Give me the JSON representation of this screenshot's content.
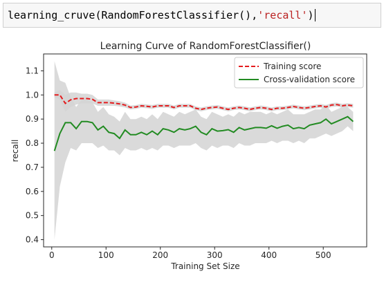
{
  "code_cell": {
    "func": "learning_cruve",
    "paren_open": "(",
    "arg1": "RandomForestClassifier()",
    "comma": ",",
    "arg2": "'recall'",
    "paren_close": ")"
  },
  "colors": {
    "training": "#e41a1c",
    "cv": "#228b22",
    "band": "#d3d3d3"
  },
  "chart_data": {
    "type": "line",
    "title": "Learning Curve of RandomForestClassifier()",
    "xlabel": "Training Set Size",
    "ylabel": "recall",
    "xlim": [
      -15,
      580
    ],
    "ylim": [
      0.37,
      1.17
    ],
    "xticks": [
      0,
      100,
      200,
      300,
      400,
      500
    ],
    "yticks": [
      0.4,
      0.5,
      0.6,
      0.7,
      0.8,
      0.9,
      1.0,
      1.1
    ],
    "legend_position": "top-right",
    "x": [
      5,
      15,
      25,
      35,
      45,
      55,
      65,
      75,
      85,
      95,
      105,
      115,
      125,
      135,
      145,
      155,
      165,
      175,
      185,
      195,
      205,
      215,
      225,
      235,
      245,
      255,
      265,
      275,
      285,
      295,
      305,
      315,
      325,
      335,
      345,
      355,
      365,
      375,
      385,
      395,
      405,
      415,
      425,
      435,
      445,
      455,
      465,
      475,
      485,
      495,
      505,
      515,
      525,
      535,
      545,
      555
    ],
    "series": [
      {
        "name": "Training score",
        "style": "dashed",
        "values": [
          1.0,
          1.0,
          0.965,
          0.98,
          0.985,
          0.985,
          0.985,
          0.982,
          0.968,
          0.968,
          0.968,
          0.966,
          0.963,
          0.958,
          0.948,
          0.95,
          0.955,
          0.953,
          0.95,
          0.955,
          0.955,
          0.955,
          0.948,
          0.955,
          0.955,
          0.955,
          0.945,
          0.94,
          0.945,
          0.948,
          0.95,
          0.945,
          0.94,
          0.945,
          0.948,
          0.945,
          0.94,
          0.945,
          0.948,
          0.945,
          0.94,
          0.945,
          0.945,
          0.948,
          0.952,
          0.948,
          0.945,
          0.948,
          0.952,
          0.955,
          0.95,
          0.958,
          0.96,
          0.955,
          0.958,
          0.955
        ],
        "band_lower": [
          0.99,
          0.98,
          0.93,
          0.95,
          0.96,
          0.965,
          0.965,
          0.965,
          0.955,
          0.955,
          0.955,
          0.955,
          0.952,
          0.948,
          0.94,
          0.942,
          0.947,
          0.945,
          0.942,
          0.947,
          0.947,
          0.947,
          0.94,
          0.947,
          0.947,
          0.947,
          0.937,
          0.932,
          0.937,
          0.94,
          0.942,
          0.937,
          0.932,
          0.937,
          0.94,
          0.937,
          0.932,
          0.937,
          0.94,
          0.937,
          0.932,
          0.937,
          0.937,
          0.94,
          0.944,
          0.94,
          0.937,
          0.94,
          0.944,
          0.947,
          0.942,
          0.95,
          0.952,
          0.947,
          0.95,
          0.947
        ],
        "band_upper": [
          1.01,
          1.02,
          1.0,
          1.01,
          1.01,
          1.005,
          1.005,
          1.0,
          0.981,
          0.981,
          0.981,
          0.977,
          0.974,
          0.968,
          0.956,
          0.958,
          0.963,
          0.961,
          0.958,
          0.963,
          0.963,
          0.963,
          0.956,
          0.963,
          0.963,
          0.963,
          0.953,
          0.948,
          0.953,
          0.956,
          0.958,
          0.953,
          0.948,
          0.953,
          0.956,
          0.953,
          0.948,
          0.953,
          0.956,
          0.953,
          0.948,
          0.953,
          0.953,
          0.956,
          0.96,
          0.956,
          0.953,
          0.956,
          0.96,
          0.963,
          0.958,
          0.966,
          0.968,
          0.963,
          0.966,
          0.963
        ]
      },
      {
        "name": "Cross-validation score",
        "style": "solid",
        "values": [
          0.768,
          0.84,
          0.885,
          0.885,
          0.86,
          0.89,
          0.89,
          0.885,
          0.855,
          0.87,
          0.845,
          0.84,
          0.82,
          0.855,
          0.835,
          0.835,
          0.845,
          0.835,
          0.85,
          0.835,
          0.86,
          0.855,
          0.845,
          0.86,
          0.855,
          0.86,
          0.87,
          0.845,
          0.835,
          0.86,
          0.85,
          0.852,
          0.856,
          0.845,
          0.865,
          0.855,
          0.86,
          0.865,
          0.865,
          0.862,
          0.872,
          0.862,
          0.87,
          0.875,
          0.86,
          0.865,
          0.86,
          0.875,
          0.88,
          0.885,
          0.9,
          0.88,
          0.89,
          0.9,
          0.91,
          0.89
        ],
        "band_lower": [
          0.4,
          0.62,
          0.72,
          0.78,
          0.77,
          0.8,
          0.8,
          0.8,
          0.78,
          0.79,
          0.77,
          0.77,
          0.75,
          0.78,
          0.77,
          0.77,
          0.78,
          0.77,
          0.78,
          0.77,
          0.79,
          0.79,
          0.78,
          0.79,
          0.79,
          0.79,
          0.8,
          0.78,
          0.77,
          0.79,
          0.78,
          0.79,
          0.79,
          0.78,
          0.8,
          0.79,
          0.79,
          0.8,
          0.8,
          0.8,
          0.81,
          0.8,
          0.81,
          0.81,
          0.8,
          0.81,
          0.8,
          0.82,
          0.82,
          0.83,
          0.84,
          0.83,
          0.84,
          0.85,
          0.87,
          0.85
        ],
        "band_upper": [
          1.14,
          1.06,
          1.05,
          0.99,
          0.95,
          0.98,
          0.98,
          0.97,
          0.93,
          0.95,
          0.92,
          0.91,
          0.89,
          0.93,
          0.9,
          0.9,
          0.91,
          0.9,
          0.92,
          0.9,
          0.93,
          0.92,
          0.91,
          0.93,
          0.92,
          0.93,
          0.94,
          0.91,
          0.9,
          0.93,
          0.92,
          0.91,
          0.92,
          0.91,
          0.93,
          0.92,
          0.93,
          0.93,
          0.93,
          0.92,
          0.93,
          0.92,
          0.93,
          0.94,
          0.92,
          0.92,
          0.92,
          0.93,
          0.94,
          0.94,
          0.96,
          0.93,
          0.94,
          0.95,
          0.95,
          0.93
        ]
      }
    ]
  }
}
